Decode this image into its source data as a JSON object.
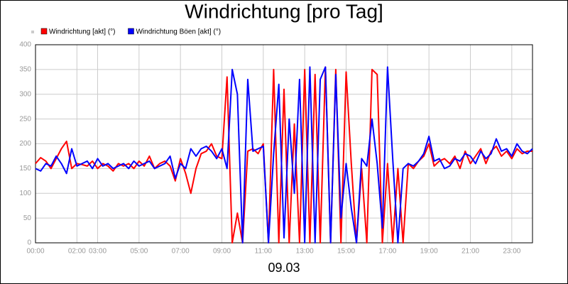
{
  "chart_data": {
    "type": "line",
    "title": "Windrichtung [pro Tag]",
    "xlabel": "09.03",
    "x": [
      0,
      0.25,
      0.5,
      0.75,
      1,
      1.25,
      1.5,
      1.75,
      2,
      2.25,
      2.5,
      2.75,
      3,
      3.25,
      3.5,
      3.75,
      4,
      4.25,
      4.5,
      4.75,
      5,
      5.25,
      5.5,
      5.75,
      6,
      6.25,
      6.5,
      6.75,
      7,
      7.25,
      7.5,
      7.75,
      8,
      8.25,
      8.5,
      8.75,
      9,
      9.25,
      9.5,
      9.75,
      10,
      10.25,
      10.5,
      10.75,
      11,
      11.25,
      11.5,
      11.75,
      12,
      12.25,
      12.5,
      12.75,
      13,
      13.25,
      13.5,
      13.75,
      14,
      14.25,
      14.5,
      14.75,
      15,
      15.25,
      15.5,
      15.75,
      16,
      16.25,
      16.5,
      16.75,
      17,
      17.25,
      17.5,
      17.75,
      18,
      18.25,
      18.5,
      18.75,
      19,
      19.25,
      19.5,
      19.75,
      20,
      20.25,
      20.5,
      20.75,
      21,
      21.25,
      21.5,
      21.75,
      22,
      22.25,
      22.5,
      22.75,
      23,
      23.25,
      23.5,
      23.75,
      24
    ],
    "series": [
      {
        "name": "Windrichtung [akt] (°)",
        "color": "#ff0000",
        "values": [
          160,
          172,
          165,
          150,
          170,
          190,
          205,
          150,
          160,
          158,
          155,
          165,
          150,
          160,
          155,
          145,
          160,
          155,
          160,
          150,
          165,
          155,
          175,
          150,
          160,
          165,
          155,
          125,
          170,
          140,
          100,
          150,
          180,
          185,
          200,
          175,
          170,
          335,
          0,
          60,
          0,
          185,
          190,
          180,
          200,
          0,
          350,
          0,
          310,
          0,
          240,
          0,
          350,
          0,
          340,
          0,
          355,
          0,
          350,
          0,
          345,
          160,
          0,
          150,
          0,
          350,
          340,
          0,
          160,
          0,
          150,
          0,
          160,
          150,
          165,
          175,
          200,
          155,
          165,
          170,
          160,
          175,
          150,
          185,
          160,
          175,
          190,
          160,
          185,
          195,
          175,
          185,
          170,
          190,
          180,
          185,
          185
        ]
      },
      {
        "name": "Windrichtung Böen [akt] (°)",
        "color": "#0000ff",
        "values": [
          150,
          145,
          160,
          155,
          175,
          160,
          140,
          190,
          155,
          160,
          165,
          150,
          170,
          155,
          160,
          150,
          155,
          160,
          150,
          165,
          155,
          160,
          165,
          150,
          155,
          160,
          175,
          130,
          160,
          150,
          190,
          175,
          190,
          195,
          185,
          170,
          190,
          150,
          350,
          300,
          0,
          330,
          185,
          190,
          195,
          0,
          180,
          320,
          10,
          250,
          100,
          330,
          0,
          355,
          0,
          330,
          355,
          0,
          340,
          50,
          160,
          70,
          0,
          170,
          155,
          250,
          160,
          30,
          355,
          170,
          0,
          150,
          160,
          155,
          165,
          180,
          215,
          165,
          170,
          150,
          155,
          170,
          165,
          180,
          175,
          160,
          185,
          170,
          180,
          210,
          185,
          190,
          175,
          200,
          185,
          180,
          190
        ]
      }
    ],
    "xlim": [
      0,
      24
    ],
    "xticks": [
      {
        "value": 0,
        "label": "00:00"
      },
      {
        "value": 2,
        "label": "02:00"
      },
      {
        "value": 3,
        "label": "03:00"
      },
      {
        "value": 5,
        "label": "05:00"
      },
      {
        "value": 7,
        "label": "07:00"
      },
      {
        "value": 9,
        "label": "09:00"
      },
      {
        "value": 11,
        "label": "11:00"
      },
      {
        "value": 13,
        "label": "13:00"
      },
      {
        "value": 15,
        "label": "15:00"
      },
      {
        "value": 17,
        "label": "17:00"
      },
      {
        "value": 19,
        "label": "19:00"
      },
      {
        "value": 21,
        "label": "21:00"
      },
      {
        "value": 23,
        "label": "23:00"
      }
    ],
    "ylim": [
      0,
      400
    ],
    "yticks": [
      0,
      50,
      100,
      150,
      200,
      250,
      300,
      350,
      400
    ],
    "grid": true
  }
}
